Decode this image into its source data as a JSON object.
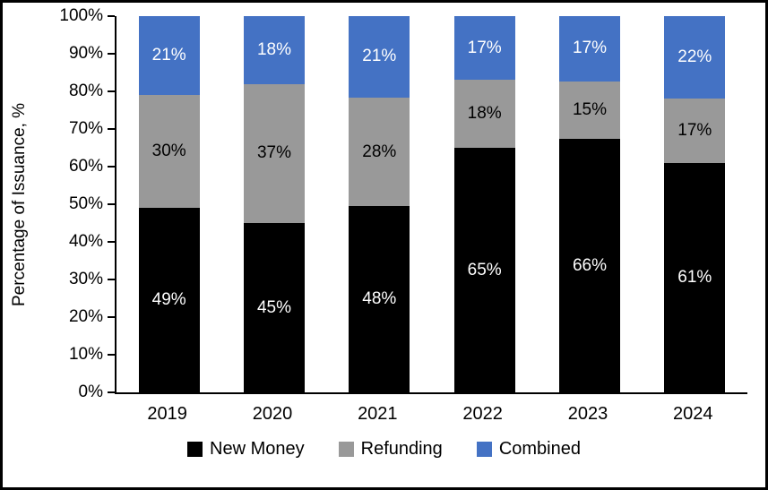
{
  "chart_data": {
    "type": "bar",
    "stacked": true,
    "percent_stacked": true,
    "title": "",
    "ylabel": "Percentage of Issuance, %",
    "xlabel": "",
    "ylim": [
      0,
      100
    ],
    "y_ticks": [
      "0%",
      "10%",
      "20%",
      "30%",
      "40%",
      "50%",
      "60%",
      "70%",
      "80%",
      "90%",
      "100%"
    ],
    "grid": false,
    "legend_position": "bottom",
    "label_suffix": "%",
    "categories": [
      "2019",
      "2020",
      "2021",
      "2022",
      "2023",
      "2024"
    ],
    "series": [
      {
        "name": "New Money",
        "color": "#000000",
        "label_color": "#ffffff",
        "values": [
          49,
          45,
          48,
          65,
          66,
          61
        ]
      },
      {
        "name": "Refunding",
        "color": "#999999",
        "label_color": "#000000",
        "values": [
          30,
          37,
          28,
          18,
          15,
          17
        ]
      },
      {
        "name": "Combined",
        "color": "#4472C4",
        "label_color": "#ffffff",
        "values": [
          21,
          18,
          21,
          17,
          17,
          22
        ]
      }
    ]
  }
}
